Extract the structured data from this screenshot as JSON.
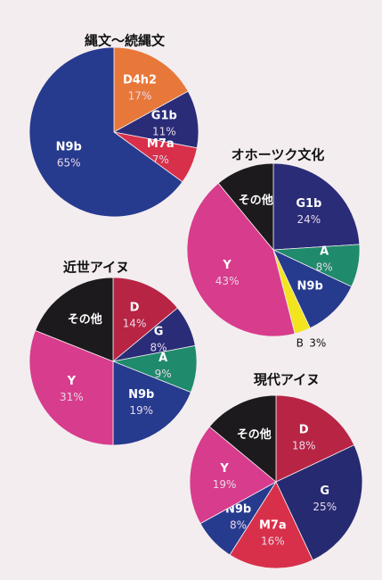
{
  "chart_data": [
    {
      "type": "pie",
      "title": "縄文～続縄文",
      "categories": [
        "D4h2",
        "G1b",
        "M7a",
        "N9b"
      ],
      "values": [
        17,
        11,
        7,
        65
      ],
      "value_labels": [
        "17%",
        "11%",
        "7%",
        "65%"
      ],
      "colors": [
        "#e8783a",
        "#2a2c78",
        "#d8304a",
        "#263a8e"
      ]
    },
    {
      "type": "pie",
      "title": "オホーツク文化",
      "categories": [
        "G1b",
        "A",
        "N9b",
        "B",
        "Y",
        "その他"
      ],
      "values": [
        24,
        8,
        11,
        3,
        43,
        11
      ],
      "value_labels": [
        "24%",
        "8%",
        null,
        "3%",
        "43%",
        null
      ],
      "colors": [
        "#2a2c78",
        "#1f8a6c",
        "#263a8e",
        "#f2e41e",
        "#d83c8c",
        "#1c1a1c"
      ]
    },
    {
      "type": "pie",
      "title": "近世アイヌ",
      "categories": [
        "D",
        "G",
        "A",
        "N9b",
        "Y",
        "その他"
      ],
      "values": [
        14,
        8,
        9,
        19,
        31,
        19
      ],
      "value_labels": [
        "14%",
        "8%",
        "9%",
        "19%",
        "31%",
        null
      ],
      "colors": [
        "#b82444",
        "#2a2c78",
        "#1f8a6c",
        "#263a8e",
        "#d83c8c",
        "#1c1a1c"
      ]
    },
    {
      "type": "pie",
      "title": "現代アイヌ",
      "categories": [
        "D",
        "G",
        "M7a",
        "N9b",
        "Y",
        "その他"
      ],
      "values": [
        18,
        25,
        16,
        8,
        19,
        14
      ],
      "value_labels": [
        "18%",
        "25%",
        "16%",
        "8%",
        "19%",
        null
      ],
      "colors": [
        "#b82444",
        "#262a70",
        "#d8304a",
        "#263a8e",
        "#d83c8c",
        "#1c1a1c"
      ]
    }
  ]
}
